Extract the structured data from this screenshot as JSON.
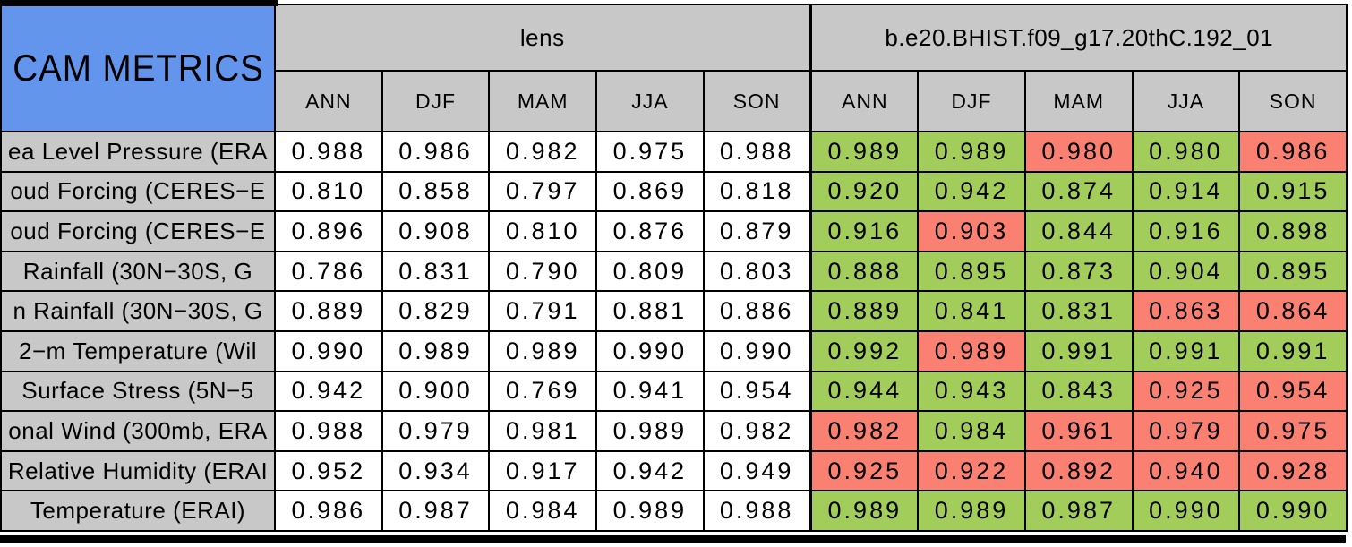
{
  "colors": {
    "title_bg": "#6495ED",
    "header_bg": "#C8C8C8",
    "good": "#A2CD5A",
    "bad": "#FA8072",
    "cell_bg": "#FFFFFF",
    "border": "#000000"
  },
  "chart_data": {
    "type": "table",
    "title": "CAM METRICS",
    "column_groups": [
      {
        "label": "lens",
        "columns": [
          "ANN",
          "DJF",
          "MAM",
          "JJA",
          "SON"
        ]
      },
      {
        "label": "b.e20.BHIST.f09_g17.20thC.192_01",
        "columns": [
          "ANN",
          "DJF",
          "MAM",
          "JJA",
          "SON"
        ]
      }
    ],
    "rows": [
      {
        "label": "ea Level Pressure (ERA",
        "lens": [
          "0.988",
          "0.986",
          "0.982",
          "0.975",
          "0.988"
        ],
        "model": [
          "0.989",
          "0.989",
          "0.980",
          "0.980",
          "0.986"
        ],
        "model_status": [
          "good",
          "good",
          "bad",
          "good",
          "bad"
        ]
      },
      {
        "label": "oud Forcing (CERES−E",
        "lens": [
          "0.810",
          "0.858",
          "0.797",
          "0.869",
          "0.818"
        ],
        "model": [
          "0.920",
          "0.942",
          "0.874",
          "0.914",
          "0.915"
        ],
        "model_status": [
          "good",
          "good",
          "good",
          "good",
          "good"
        ]
      },
      {
        "label": "oud Forcing (CERES−E",
        "lens": [
          "0.896",
          "0.908",
          "0.810",
          "0.876",
          "0.879"
        ],
        "model": [
          "0.916",
          "0.903",
          "0.844",
          "0.916",
          "0.898"
        ],
        "model_status": [
          "good",
          "bad",
          "good",
          "good",
          "good"
        ]
      },
      {
        "label": "Rainfall (30N−30S, G",
        "lens": [
          "0.786",
          "0.831",
          "0.790",
          "0.809",
          "0.803"
        ],
        "model": [
          "0.888",
          "0.895",
          "0.873",
          "0.904",
          "0.895"
        ],
        "model_status": [
          "good",
          "good",
          "good",
          "good",
          "good"
        ]
      },
      {
        "label": "n Rainfall (30N−30S, G",
        "lens": [
          "0.889",
          "0.829",
          "0.791",
          "0.881",
          "0.886"
        ],
        "model": [
          "0.889",
          "0.841",
          "0.831",
          "0.863",
          "0.864"
        ],
        "model_status": [
          "good",
          "good",
          "good",
          "bad",
          "bad"
        ]
      },
      {
        "label": "2−m Temperature (Wil",
        "lens": [
          "0.990",
          "0.989",
          "0.989",
          "0.990",
          "0.990"
        ],
        "model": [
          "0.992",
          "0.989",
          "0.991",
          "0.991",
          "0.991"
        ],
        "model_status": [
          "good",
          "bad",
          "good",
          "good",
          "good"
        ]
      },
      {
        "label": "Surface Stress (5N−5",
        "lens": [
          "0.942",
          "0.900",
          "0.769",
          "0.941",
          "0.954"
        ],
        "model": [
          "0.944",
          "0.943",
          "0.843",
          "0.925",
          "0.954"
        ],
        "model_status": [
          "good",
          "good",
          "good",
          "bad",
          "bad"
        ]
      },
      {
        "label": "onal Wind (300mb, ERA",
        "lens": [
          "0.988",
          "0.979",
          "0.981",
          "0.989",
          "0.982"
        ],
        "model": [
          "0.982",
          "0.984",
          "0.961",
          "0.979",
          "0.975"
        ],
        "model_status": [
          "bad",
          "good",
          "bad",
          "bad",
          "bad"
        ]
      },
      {
        "label": "Relative Humidity (ERAI",
        "lens": [
          "0.952",
          "0.934",
          "0.917",
          "0.942",
          "0.949"
        ],
        "model": [
          "0.925",
          "0.922",
          "0.892",
          "0.940",
          "0.928"
        ],
        "model_status": [
          "bad",
          "bad",
          "bad",
          "bad",
          "bad"
        ]
      },
      {
        "label": "Temperature (ERAI)",
        "lens": [
          "0.986",
          "0.987",
          "0.984",
          "0.989",
          "0.988"
        ],
        "model": [
          "0.989",
          "0.989",
          "0.987",
          "0.990",
          "0.990"
        ],
        "model_status": [
          "good",
          "good",
          "good",
          "good",
          "good"
        ]
      }
    ]
  }
}
